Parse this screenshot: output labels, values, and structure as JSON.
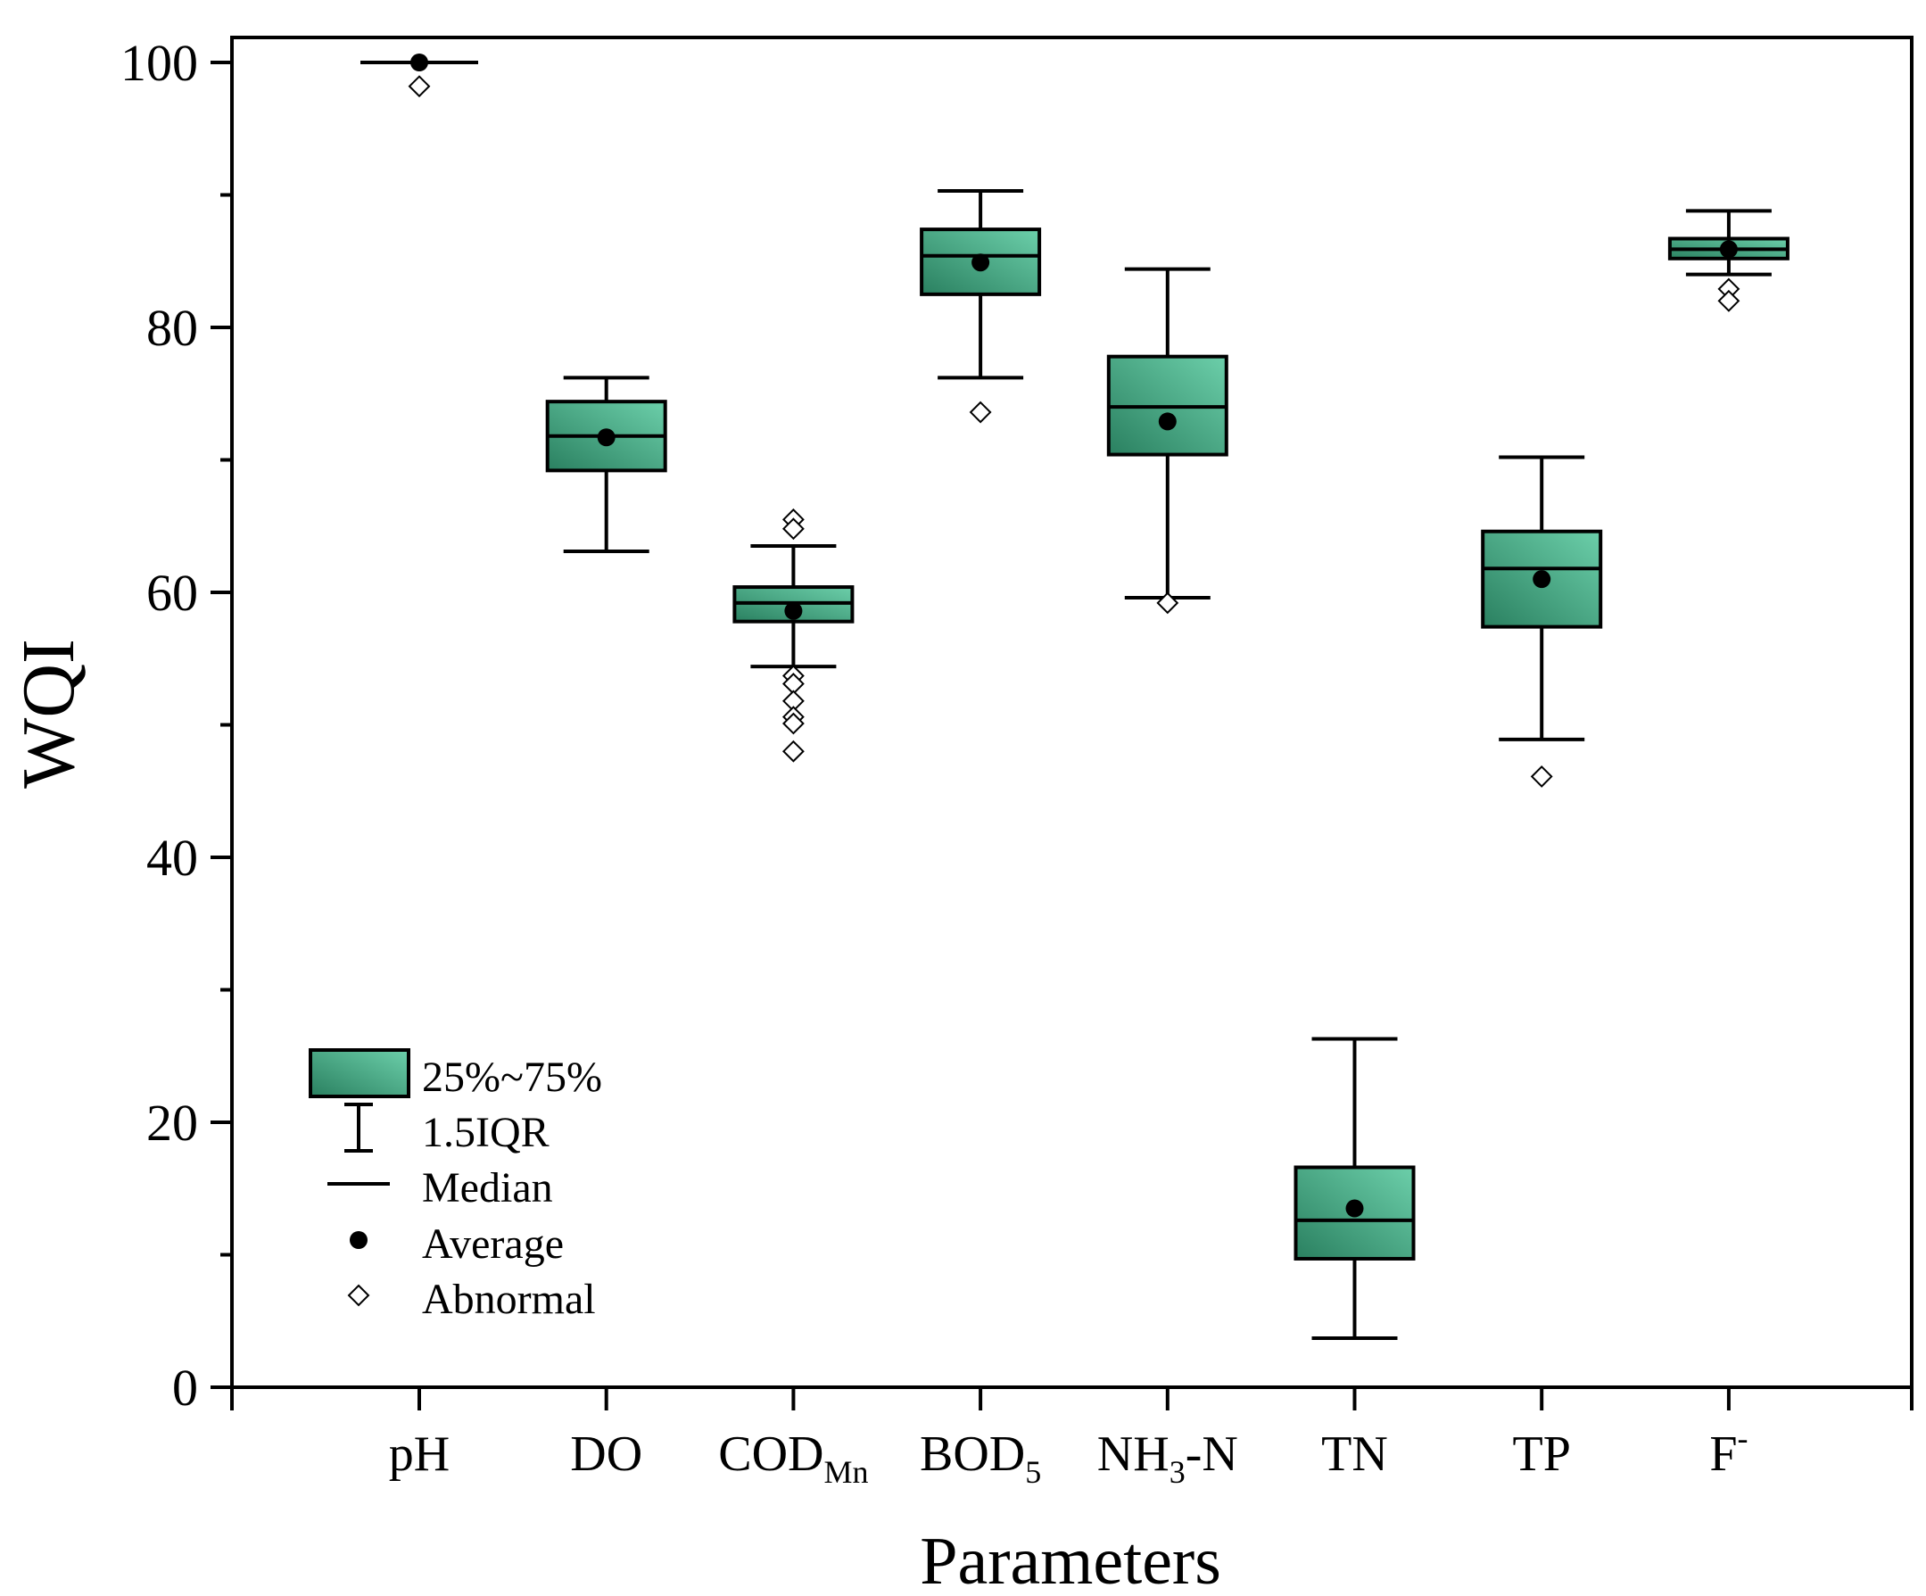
{
  "chart_data": {
    "type": "box",
    "title": "",
    "xlabel": "Parameters",
    "ylabel": "WQI",
    "ylim": [
      0,
      102
    ],
    "y_major_ticks": [
      0,
      20,
      40,
      60,
      80,
      100
    ],
    "y_minor_ticks": [
      10,
      30,
      50,
      70,
      90
    ],
    "categories": [
      {
        "base": "pH",
        "sub": "",
        "sup": "",
        "tail": ""
      },
      {
        "base": "DO",
        "sub": "",
        "sup": "",
        "tail": ""
      },
      {
        "base": "COD",
        "sub": "Mn",
        "sup": "",
        "tail": ""
      },
      {
        "base": "BOD",
        "sub": "5",
        "sup": "",
        "tail": ""
      },
      {
        "base": "NH",
        "sub": "3",
        "sup": "",
        "tail": "-N"
      },
      {
        "base": "TN",
        "sub": "",
        "sup": "",
        "tail": ""
      },
      {
        "base": "TP",
        "sub": "",
        "sup": "",
        "tail": ""
      },
      {
        "base": "F",
        "sub": "",
        "sup": "-",
        "tail": ""
      }
    ],
    "boxes": [
      {
        "q1": 100,
        "q3": 100,
        "median": 100,
        "whisker_low": 100,
        "whisker_high": 100,
        "mean": 100,
        "outliers": [
          98.2
        ]
      },
      {
        "q1": 69.2,
        "q3": 74.4,
        "median": 71.8,
        "whisker_low": 63.1,
        "whisker_high": 76.2,
        "mean": 71.7,
        "outliers": []
      },
      {
        "q1": 57.8,
        "q3": 60.4,
        "median": 59.2,
        "whisker_low": 54.4,
        "whisker_high": 63.5,
        "mean": 58.6,
        "outliers": [
          65.5,
          64.8,
          53.7,
          53.1,
          51.8,
          50.6,
          50.1,
          48.0
        ]
      },
      {
        "q1": 82.5,
        "q3": 87.4,
        "median": 85.4,
        "whisker_low": 76.2,
        "whisker_high": 90.3,
        "mean": 84.9,
        "outliers": [
          73.6
        ]
      },
      {
        "q1": 70.4,
        "q3": 77.8,
        "median": 74.0,
        "whisker_low": 59.6,
        "whisker_high": 84.4,
        "mean": 72.9,
        "outliers": [
          59.2
        ]
      },
      {
        "q1": 9.7,
        "q3": 16.6,
        "median": 12.6,
        "whisker_low": 3.7,
        "whisker_high": 26.3,
        "mean": 13.5,
        "outliers": []
      },
      {
        "q1": 57.4,
        "q3": 64.6,
        "median": 61.8,
        "whisker_low": 48.9,
        "whisker_high": 70.2,
        "mean": 61.0,
        "outliers": [
          46.1
        ]
      },
      {
        "q1": 85.2,
        "q3": 86.7,
        "median": 85.9,
        "whisker_low": 84.0,
        "whisker_high": 88.8,
        "mean": 85.9,
        "outliers": [
          82.9,
          82.0
        ]
      }
    ],
    "legend": {
      "position": "bottom-left",
      "entries": [
        "25%~75%",
        "1.5IQR",
        "Median",
        "Average",
        "Abnormal"
      ]
    },
    "colors": {
      "box_fill_dark": "#2a8060",
      "box_fill_light": "#6ccfaa",
      "line": "#000000",
      "mean_marker": "#000000",
      "outlier_marker": "#ffffff"
    }
  }
}
